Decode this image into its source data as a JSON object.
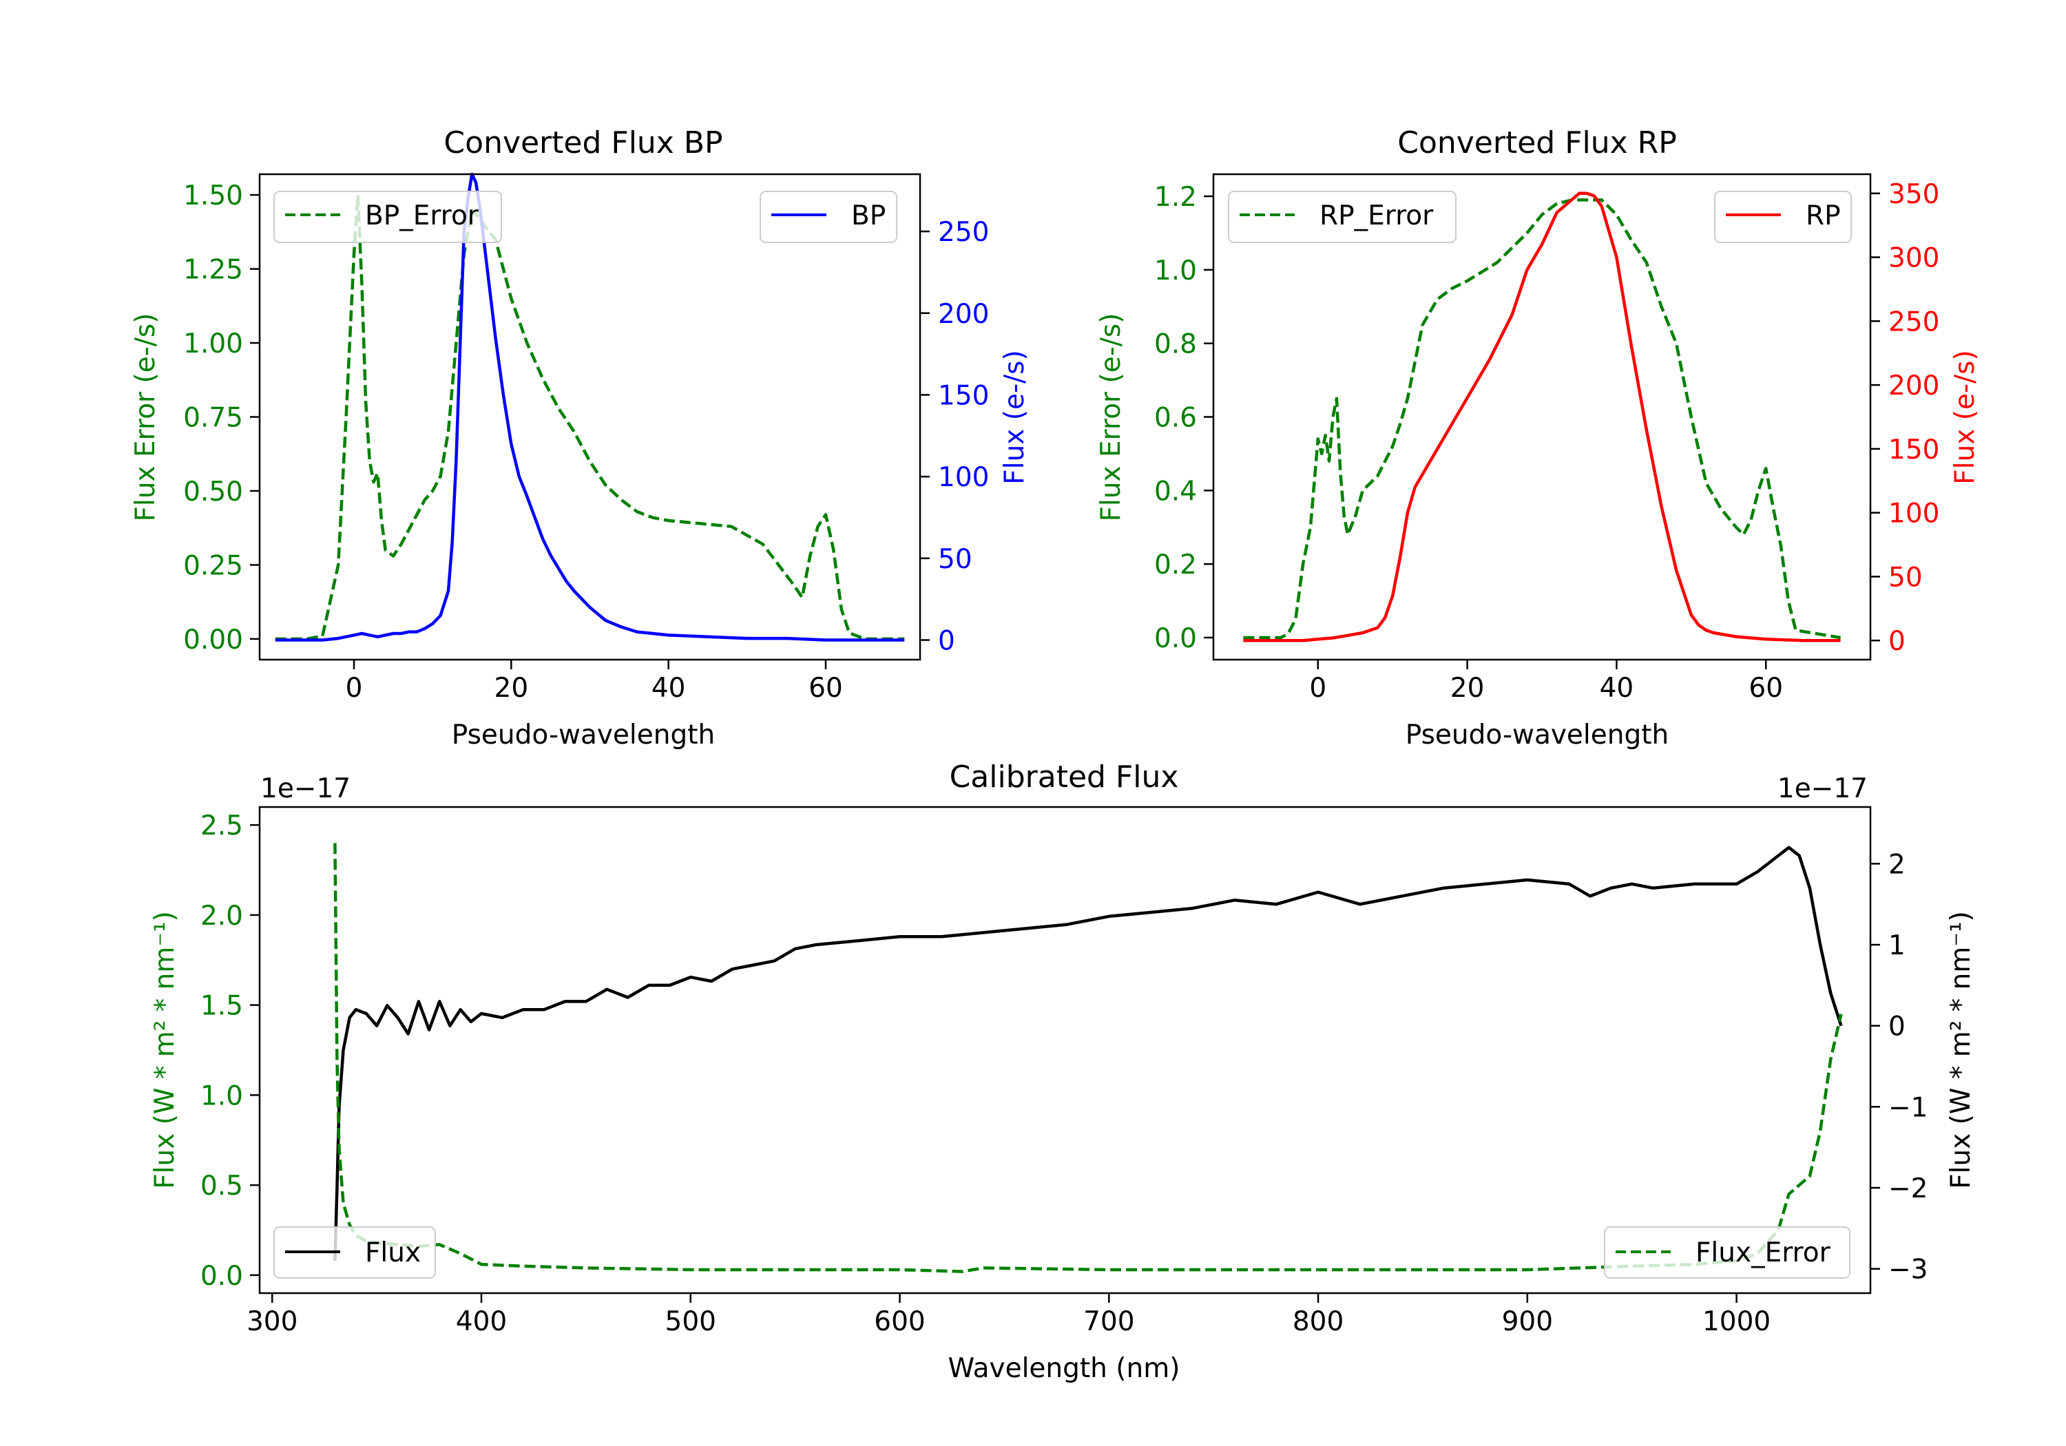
{
  "colors": {
    "error": "#008000",
    "bp": "#0000ff",
    "rp": "#ff0000",
    "flux": "#000000",
    "axis": "#000000"
  },
  "chart_data": [
    {
      "id": "bp",
      "type": "line",
      "title": "Converted Flux BP",
      "xlabel": "Pseudo-wavelength",
      "ylabel_left": "Flux Error (e-/s)",
      "ylabel_right": "Flux (e-/s)",
      "xlim": [
        -12,
        72
      ],
      "ylim_left": [
        -0.07,
        1.57
      ],
      "ylim_right": [
        -12,
        285
      ],
      "xticks": [
        0,
        20,
        40,
        60
      ],
      "yticks_left": [
        "0.00",
        "0.25",
        "0.50",
        "0.75",
        "1.00",
        "1.25",
        "1.50"
      ],
      "yticks_right": [
        "0",
        "50",
        "100",
        "150",
        "200",
        "250"
      ],
      "legend_left": "BP_Error",
      "legend_right": "BP",
      "series": [
        {
          "name": "BP_Error",
          "axis": "left",
          "style": "dashed",
          "x": [
            -10,
            -6,
            -4,
            -2,
            -1,
            0,
            0.5,
            1,
            1.5,
            2,
            2.5,
            3,
            3.5,
            4,
            4.5,
            5,
            6,
            7,
            8,
            9,
            10,
            11,
            12,
            13,
            14,
            15,
            16,
            17,
            18,
            19,
            20,
            22,
            24,
            26,
            28,
            30,
            32,
            34,
            36,
            38,
            40,
            44,
            48,
            52,
            56,
            57,
            58,
            59,
            60,
            61,
            62,
            63,
            65,
            70
          ],
          "values": [
            0.0,
            0.0,
            0.01,
            0.25,
            0.75,
            1.3,
            1.5,
            1.2,
            0.8,
            0.6,
            0.53,
            0.56,
            0.4,
            0.3,
            0.29,
            0.28,
            0.32,
            0.37,
            0.42,
            0.47,
            0.5,
            0.55,
            0.7,
            1.0,
            1.3,
            1.45,
            1.42,
            1.38,
            1.35,
            1.25,
            1.15,
            1.0,
            0.88,
            0.78,
            0.7,
            0.6,
            0.52,
            0.47,
            0.43,
            0.41,
            0.4,
            0.39,
            0.38,
            0.32,
            0.18,
            0.14,
            0.28,
            0.38,
            0.42,
            0.3,
            0.1,
            0.02,
            0.0,
            0.0
          ]
        },
        {
          "name": "BP",
          "axis": "right",
          "style": "solid",
          "x": [
            -10,
            -4,
            -2,
            0,
            1,
            2,
            3,
            4,
            5,
            6,
            7,
            8,
            9,
            10,
            11,
            12,
            12.5,
            13,
            13.5,
            14,
            14.5,
            15,
            15.5,
            16,
            17,
            18,
            19,
            20,
            21,
            22,
            23,
            24,
            25,
            26,
            27,
            28,
            30,
            32,
            34,
            36,
            40,
            50,
            55,
            60,
            65,
            70
          ],
          "values": [
            0,
            0,
            1,
            3,
            4,
            3,
            2,
            3,
            4,
            4,
            5,
            5,
            7,
            10,
            15,
            30,
            60,
            110,
            180,
            250,
            270,
            285,
            280,
            265,
            225,
            185,
            150,
            120,
            100,
            88,
            75,
            62,
            52,
            44,
            36,
            30,
            20,
            12,
            8,
            5,
            3,
            1,
            1,
            0,
            0,
            0
          ]
        }
      ]
    },
    {
      "id": "rp",
      "type": "line",
      "title": "Converted Flux RP",
      "xlabel": "Pseudo-wavelength",
      "ylabel_left": "Flux Error (e-/s)",
      "ylabel_right": "Flux (e-/s)",
      "xlim": [
        -14,
        74
      ],
      "ylim_left": [
        -0.06,
        1.26
      ],
      "ylim_right": [
        -15,
        365
      ],
      "xticks": [
        0,
        20,
        40,
        60
      ],
      "yticks_left": [
        "0.0",
        "0.2",
        "0.4",
        "0.6",
        "0.8",
        "1.0",
        "1.2"
      ],
      "yticks_right": [
        "0",
        "50",
        "100",
        "150",
        "200",
        "250",
        "300",
        "350"
      ],
      "legend_left": "RP_Error",
      "legend_right": "RP",
      "series": [
        {
          "name": "RP_Error",
          "axis": "left",
          "style": "dashed",
          "x": [
            -10,
            -5,
            -4,
            -3,
            -2,
            -1,
            0,
            0.5,
            1,
            1.5,
            2,
            2.5,
            3,
            3.5,
            4,
            5,
            6,
            7,
            8,
            9,
            10,
            11,
            12,
            13,
            14,
            16,
            18,
            20,
            24,
            28,
            30,
            32,
            34,
            36,
            38,
            40,
            42,
            44,
            46,
            48,
            50,
            52,
            54,
            56,
            57,
            58,
            59,
            60,
            61,
            62,
            63,
            64,
            70
          ],
          "values": [
            0.0,
            0.0,
            0.01,
            0.05,
            0.2,
            0.3,
            0.54,
            0.5,
            0.55,
            0.48,
            0.6,
            0.65,
            0.45,
            0.33,
            0.28,
            0.33,
            0.4,
            0.42,
            0.44,
            0.48,
            0.52,
            0.58,
            0.65,
            0.75,
            0.85,
            0.92,
            0.95,
            0.97,
            1.02,
            1.1,
            1.15,
            1.18,
            1.19,
            1.19,
            1.19,
            1.15,
            1.08,
            1.02,
            0.9,
            0.8,
            0.6,
            0.42,
            0.35,
            0.3,
            0.28,
            0.32,
            0.4,
            0.46,
            0.35,
            0.25,
            0.1,
            0.02,
            0.0
          ]
        },
        {
          "name": "RP",
          "axis": "right",
          "style": "solid",
          "x": [
            -10,
            -2,
            0,
            2,
            4,
            6,
            8,
            9,
            10,
            11,
            12,
            13,
            14,
            15,
            17,
            20,
            23,
            26,
            28,
            30,
            32,
            34,
            35,
            36,
            37,
            38,
            40,
            42,
            44,
            46,
            48,
            50,
            51,
            52,
            53,
            54,
            56,
            60,
            65,
            70
          ],
          "values": [
            0,
            0,
            1,
            2,
            4,
            6,
            10,
            18,
            35,
            65,
            100,
            120,
            130,
            140,
            160,
            190,
            220,
            255,
            290,
            310,
            335,
            345,
            350,
            350,
            348,
            340,
            300,
            230,
            165,
            105,
            55,
            20,
            12,
            8,
            6,
            5,
            3,
            1,
            0,
            0
          ]
        }
      ]
    },
    {
      "id": "calibrated",
      "type": "line",
      "title": "Calibrated Flux",
      "xlabel": "Wavelength (nm)",
      "ylabel_left": "Flux (W * m² * nm⁻¹)",
      "ylabel_right": "Flux (W * m² * nm⁻¹)",
      "offset_left": "1e−17",
      "offset_right": "1e−17",
      "xlim": [
        294,
        1064
      ],
      "ylim_left": [
        -0.1,
        2.6
      ],
      "ylim_right": [
        -3.3,
        2.7
      ],
      "xticks": [
        300,
        400,
        500,
        600,
        700,
        800,
        900,
        1000
      ],
      "yticks_left": [
        "0.0",
        "0.5",
        "1.0",
        "1.5",
        "2.0",
        "2.5"
      ],
      "yticks_right": [
        "−3",
        "−2",
        "−1",
        "0",
        "1",
        "2"
      ],
      "legend_left": "Flux",
      "legend_right": "Flux_Error",
      "series": [
        {
          "name": "Flux",
          "axis": "right",
          "style": "solid",
          "x": [
            330,
            331,
            332,
            334,
            337,
            340,
            345,
            350,
            355,
            360,
            365,
            370,
            375,
            380,
            385,
            390,
            395,
            400,
            410,
            420,
            430,
            440,
            450,
            460,
            470,
            480,
            490,
            500,
            510,
            520,
            530,
            540,
            550,
            560,
            580,
            600,
            620,
            640,
            660,
            680,
            700,
            720,
            740,
            760,
            780,
            800,
            820,
            840,
            860,
            880,
            900,
            920,
            930,
            940,
            950,
            960,
            980,
            1000,
            1010,
            1020,
            1025,
            1030,
            1035,
            1040,
            1045,
            1050
          ],
          "values": [
            -2.9,
            -2.0,
            -1.0,
            -0.3,
            0.1,
            0.2,
            0.15,
            0.0,
            0.25,
            0.1,
            -0.1,
            0.3,
            -0.05,
            0.3,
            0.0,
            0.2,
            0.05,
            0.15,
            0.1,
            0.2,
            0.2,
            0.3,
            0.3,
            0.45,
            0.35,
            0.5,
            0.5,
            0.6,
            0.55,
            0.7,
            0.75,
            0.8,
            0.95,
            1.0,
            1.05,
            1.1,
            1.1,
            1.15,
            1.2,
            1.25,
            1.35,
            1.4,
            1.45,
            1.55,
            1.5,
            1.65,
            1.5,
            1.6,
            1.7,
            1.75,
            1.8,
            1.75,
            1.6,
            1.7,
            1.75,
            1.7,
            1.75,
            1.75,
            1.9,
            2.1,
            2.2,
            2.1,
            1.7,
            1.0,
            0.4,
            0.0
          ]
        },
        {
          "name": "Flux_Error",
          "axis": "left",
          "style": "dashed",
          "x": [
            330,
            331,
            332,
            334,
            337,
            340,
            345,
            350,
            360,
            370,
            380,
            390,
            400,
            420,
            450,
            500,
            600,
            630,
            640,
            700,
            800,
            900,
            950,
            980,
            1000,
            1010,
            1020,
            1025,
            1030,
            1035,
            1040,
            1045,
            1050
          ],
          "values": [
            2.4,
            1.2,
            0.7,
            0.4,
            0.28,
            0.22,
            0.19,
            0.18,
            0.17,
            0.16,
            0.17,
            0.12,
            0.06,
            0.05,
            0.04,
            0.03,
            0.03,
            0.02,
            0.04,
            0.03,
            0.03,
            0.03,
            0.05,
            0.06,
            0.08,
            0.12,
            0.25,
            0.45,
            0.5,
            0.55,
            0.8,
            1.2,
            1.45
          ]
        }
      ]
    }
  ]
}
